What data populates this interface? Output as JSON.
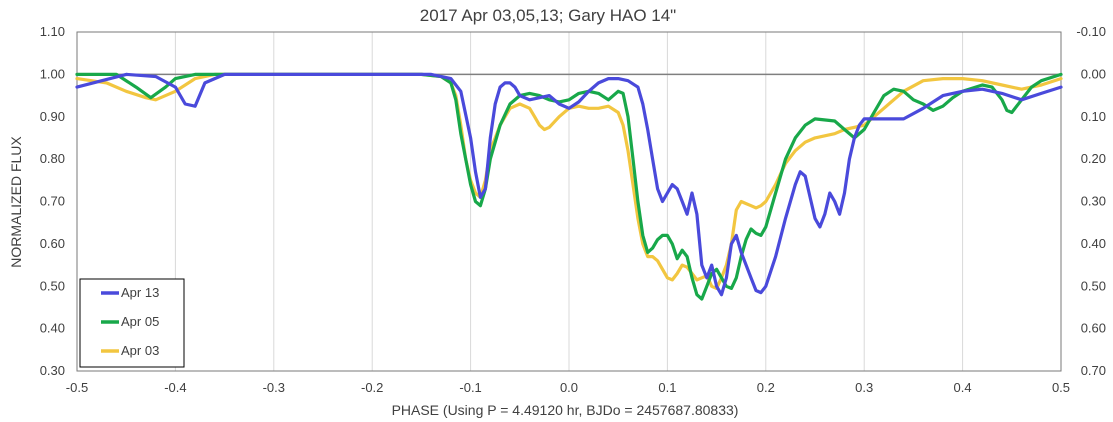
{
  "chart_data": {
    "type": "line",
    "title": "2017 Apr 03,05,13; Gary HAO 14\"",
    "xlabel": "PHASE (Using P = 4.49120 hr, BJDo = 2457687.80833)",
    "ylabel": "NORMALIZED FLUX",
    "xlim": [
      -0.5,
      0.5
    ],
    "ylim": [
      0.3,
      1.1
    ],
    "y2lim": [
      0.7,
      -0.1
    ],
    "x_ticks": [
      "-0.5",
      "-0.4",
      "-0.3",
      "-0.2",
      "-0.1",
      "0.0",
      "0.1",
      "0.2",
      "0.3",
      "0.4",
      "0.5"
    ],
    "y_ticks": [
      "0.30",
      "0.40",
      "0.50",
      "0.60",
      "0.70",
      "0.80",
      "0.90",
      "1.00",
      "1.10"
    ],
    "y2_ticks": [
      "0.70",
      "0.60",
      "0.50",
      "0.40",
      "0.30",
      "0.20",
      "0.10",
      "0.00",
      "-0.10"
    ],
    "reference_line": 1.0,
    "grid": "vertical",
    "legend_position": "bottom-left",
    "series": [
      {
        "name": "Apr 13",
        "color": "#4A4ADB",
        "points": [
          [
            -0.5,
            0.97
          ],
          [
            -0.45,
            1.0
          ],
          [
            -0.42,
            0.995
          ],
          [
            -0.4,
            0.97
          ],
          [
            -0.39,
            0.93
          ],
          [
            -0.38,
            0.925
          ],
          [
            -0.37,
            0.98
          ],
          [
            -0.35,
            1.0
          ],
          [
            -0.2,
            1.0
          ],
          [
            -0.14,
            1.0
          ],
          [
            -0.12,
            0.99
          ],
          [
            -0.11,
            0.96
          ],
          [
            -0.1,
            0.85
          ],
          [
            -0.095,
            0.77
          ],
          [
            -0.09,
            0.71
          ],
          [
            -0.085,
            0.73
          ],
          [
            -0.08,
            0.85
          ],
          [
            -0.075,
            0.93
          ],
          [
            -0.07,
            0.97
          ],
          [
            -0.065,
            0.98
          ],
          [
            -0.06,
            0.98
          ],
          [
            -0.055,
            0.97
          ],
          [
            -0.05,
            0.95
          ],
          [
            -0.04,
            0.94
          ],
          [
            -0.03,
            0.945
          ],
          [
            -0.02,
            0.95
          ],
          [
            -0.01,
            0.93
          ],
          [
            0.0,
            0.92
          ],
          [
            0.01,
            0.935
          ],
          [
            0.02,
            0.96
          ],
          [
            0.03,
            0.98
          ],
          [
            0.04,
            0.99
          ],
          [
            0.05,
            0.99
          ],
          [
            0.06,
            0.985
          ],
          [
            0.07,
            0.97
          ],
          [
            0.075,
            0.93
          ],
          [
            0.08,
            0.87
          ],
          [
            0.085,
            0.8
          ],
          [
            0.09,
            0.73
          ],
          [
            0.095,
            0.7
          ],
          [
            0.1,
            0.72
          ],
          [
            0.105,
            0.74
          ],
          [
            0.11,
            0.73
          ],
          [
            0.115,
            0.7
          ],
          [
            0.12,
            0.67
          ],
          [
            0.125,
            0.72
          ],
          [
            0.13,
            0.67
          ],
          [
            0.135,
            0.55
          ],
          [
            0.14,
            0.52
          ],
          [
            0.145,
            0.55
          ],
          [
            0.15,
            0.5
          ],
          [
            0.155,
            0.48
          ],
          [
            0.16,
            0.52
          ],
          [
            0.165,
            0.6
          ],
          [
            0.17,
            0.62
          ],
          [
            0.175,
            0.58
          ],
          [
            0.18,
            0.55
          ],
          [
            0.185,
            0.52
          ],
          [
            0.19,
            0.49
          ],
          [
            0.195,
            0.485
          ],
          [
            0.2,
            0.5
          ],
          [
            0.21,
            0.57
          ],
          [
            0.22,
            0.66
          ],
          [
            0.23,
            0.74
          ],
          [
            0.235,
            0.77
          ],
          [
            0.24,
            0.76
          ],
          [
            0.245,
            0.71
          ],
          [
            0.25,
            0.66
          ],
          [
            0.255,
            0.64
          ],
          [
            0.26,
            0.67
          ],
          [
            0.265,
            0.72
          ],
          [
            0.27,
            0.7
          ],
          [
            0.275,
            0.67
          ],
          [
            0.28,
            0.72
          ],
          [
            0.285,
            0.8
          ],
          [
            0.29,
            0.85
          ],
          [
            0.295,
            0.88
          ],
          [
            0.3,
            0.895
          ],
          [
            0.32,
            0.895
          ],
          [
            0.34,
            0.895
          ],
          [
            0.36,
            0.92
          ],
          [
            0.38,
            0.95
          ],
          [
            0.4,
            0.96
          ],
          [
            0.42,
            0.965
          ],
          [
            0.44,
            0.955
          ],
          [
            0.46,
            0.94
          ],
          [
            0.48,
            0.955
          ],
          [
            0.5,
            0.97
          ]
        ]
      },
      {
        "name": "Apr 05",
        "color": "#18A84A",
        "points": [
          [
            -0.5,
            1.0
          ],
          [
            -0.46,
            1.0
          ],
          [
            -0.44,
            0.97
          ],
          [
            -0.425,
            0.945
          ],
          [
            -0.41,
            0.97
          ],
          [
            -0.4,
            0.99
          ],
          [
            -0.38,
            1.0
          ],
          [
            -0.35,
            1.0
          ],
          [
            -0.2,
            1.0
          ],
          [
            -0.15,
            1.0
          ],
          [
            -0.13,
            0.995
          ],
          [
            -0.12,
            0.98
          ],
          [
            -0.115,
            0.94
          ],
          [
            -0.11,
            0.86
          ],
          [
            -0.105,
            0.8
          ],
          [
            -0.1,
            0.74
          ],
          [
            -0.095,
            0.7
          ],
          [
            -0.09,
            0.69
          ],
          [
            -0.085,
            0.73
          ],
          [
            -0.08,
            0.8
          ],
          [
            -0.07,
            0.88
          ],
          [
            -0.06,
            0.93
          ],
          [
            -0.05,
            0.95
          ],
          [
            -0.04,
            0.955
          ],
          [
            -0.03,
            0.95
          ],
          [
            -0.02,
            0.94
          ],
          [
            -0.01,
            0.935
          ],
          [
            0.0,
            0.94
          ],
          [
            0.01,
            0.955
          ],
          [
            0.02,
            0.96
          ],
          [
            0.03,
            0.955
          ],
          [
            0.04,
            0.94
          ],
          [
            0.05,
            0.96
          ],
          [
            0.055,
            0.955
          ],
          [
            0.06,
            0.9
          ],
          [
            0.065,
            0.8
          ],
          [
            0.07,
            0.7
          ],
          [
            0.075,
            0.62
          ],
          [
            0.08,
            0.58
          ],
          [
            0.085,
            0.59
          ],
          [
            0.09,
            0.61
          ],
          [
            0.095,
            0.62
          ],
          [
            0.1,
            0.62
          ],
          [
            0.105,
            0.6
          ],
          [
            0.11,
            0.565
          ],
          [
            0.115,
            0.585
          ],
          [
            0.12,
            0.57
          ],
          [
            0.125,
            0.52
          ],
          [
            0.13,
            0.48
          ],
          [
            0.135,
            0.47
          ],
          [
            0.14,
            0.5
          ],
          [
            0.145,
            0.53
          ],
          [
            0.15,
            0.54
          ],
          [
            0.155,
            0.52
          ],
          [
            0.16,
            0.5
          ],
          [
            0.165,
            0.495
          ],
          [
            0.17,
            0.52
          ],
          [
            0.175,
            0.57
          ],
          [
            0.18,
            0.61
          ],
          [
            0.185,
            0.635
          ],
          [
            0.19,
            0.625
          ],
          [
            0.195,
            0.62
          ],
          [
            0.2,
            0.64
          ],
          [
            0.21,
            0.72
          ],
          [
            0.22,
            0.8
          ],
          [
            0.23,
            0.85
          ],
          [
            0.24,
            0.88
          ],
          [
            0.25,
            0.895
          ],
          [
            0.27,
            0.89
          ],
          [
            0.28,
            0.87
          ],
          [
            0.29,
            0.85
          ],
          [
            0.3,
            0.87
          ],
          [
            0.31,
            0.91
          ],
          [
            0.32,
            0.95
          ],
          [
            0.33,
            0.965
          ],
          [
            0.34,
            0.96
          ],
          [
            0.35,
            0.94
          ],
          [
            0.36,
            0.93
          ],
          [
            0.37,
            0.915
          ],
          [
            0.38,
            0.925
          ],
          [
            0.39,
            0.945
          ],
          [
            0.4,
            0.96
          ],
          [
            0.42,
            0.975
          ],
          [
            0.43,
            0.97
          ],
          [
            0.44,
            0.94
          ],
          [
            0.445,
            0.915
          ],
          [
            0.45,
            0.91
          ],
          [
            0.46,
            0.94
          ],
          [
            0.47,
            0.97
          ],
          [
            0.48,
            0.985
          ],
          [
            0.5,
            1.0
          ]
        ]
      },
      {
        "name": "Apr 03",
        "color": "#F2C640",
        "points": [
          [
            -0.5,
            0.99
          ],
          [
            -0.47,
            0.98
          ],
          [
            -0.45,
            0.96
          ],
          [
            -0.43,
            0.945
          ],
          [
            -0.42,
            0.94
          ],
          [
            -0.4,
            0.96
          ],
          [
            -0.38,
            0.99
          ],
          [
            -0.36,
            1.0
          ],
          [
            -0.2,
            1.0
          ],
          [
            -0.15,
            1.0
          ],
          [
            -0.13,
            0.995
          ],
          [
            -0.12,
            0.98
          ],
          [
            -0.115,
            0.95
          ],
          [
            -0.11,
            0.88
          ],
          [
            -0.105,
            0.8
          ],
          [
            -0.1,
            0.75
          ],
          [
            -0.095,
            0.72
          ],
          [
            -0.09,
            0.71
          ],
          [
            -0.085,
            0.75
          ],
          [
            -0.08,
            0.82
          ],
          [
            -0.07,
            0.88
          ],
          [
            -0.06,
            0.92
          ],
          [
            -0.05,
            0.93
          ],
          [
            -0.04,
            0.92
          ],
          [
            -0.035,
            0.9
          ],
          [
            -0.03,
            0.88
          ],
          [
            -0.025,
            0.87
          ],
          [
            -0.02,
            0.875
          ],
          [
            -0.01,
            0.9
          ],
          [
            0.0,
            0.92
          ],
          [
            0.01,
            0.925
          ],
          [
            0.02,
            0.92
          ],
          [
            0.03,
            0.92
          ],
          [
            0.04,
            0.925
          ],
          [
            0.05,
            0.91
          ],
          [
            0.055,
            0.88
          ],
          [
            0.06,
            0.82
          ],
          [
            0.065,
            0.74
          ],
          [
            0.07,
            0.66
          ],
          [
            0.075,
            0.6
          ],
          [
            0.08,
            0.57
          ],
          [
            0.085,
            0.57
          ],
          [
            0.09,
            0.56
          ],
          [
            0.095,
            0.54
          ],
          [
            0.1,
            0.52
          ],
          [
            0.105,
            0.515
          ],
          [
            0.11,
            0.53
          ],
          [
            0.115,
            0.55
          ],
          [
            0.12,
            0.545
          ],
          [
            0.125,
            0.53
          ],
          [
            0.13,
            0.515
          ],
          [
            0.135,
            0.52
          ],
          [
            0.14,
            0.525
          ],
          [
            0.145,
            0.5
          ],
          [
            0.15,
            0.495
          ],
          [
            0.155,
            0.52
          ],
          [
            0.16,
            0.55
          ],
          [
            0.165,
            0.6
          ],
          [
            0.17,
            0.68
          ],
          [
            0.175,
            0.7
          ],
          [
            0.18,
            0.695
          ],
          [
            0.185,
            0.69
          ],
          [
            0.19,
            0.685
          ],
          [
            0.195,
            0.69
          ],
          [
            0.2,
            0.7
          ],
          [
            0.21,
            0.74
          ],
          [
            0.22,
            0.79
          ],
          [
            0.23,
            0.82
          ],
          [
            0.24,
            0.84
          ],
          [
            0.25,
            0.85
          ],
          [
            0.27,
            0.86
          ],
          [
            0.28,
            0.87
          ],
          [
            0.3,
            0.88
          ],
          [
            0.32,
            0.92
          ],
          [
            0.34,
            0.96
          ],
          [
            0.36,
            0.985
          ],
          [
            0.38,
            0.99
          ],
          [
            0.4,
            0.99
          ],
          [
            0.42,
            0.985
          ],
          [
            0.44,
            0.975
          ],
          [
            0.46,
            0.965
          ],
          [
            0.48,
            0.975
          ],
          [
            0.5,
            0.99
          ]
        ]
      }
    ]
  }
}
